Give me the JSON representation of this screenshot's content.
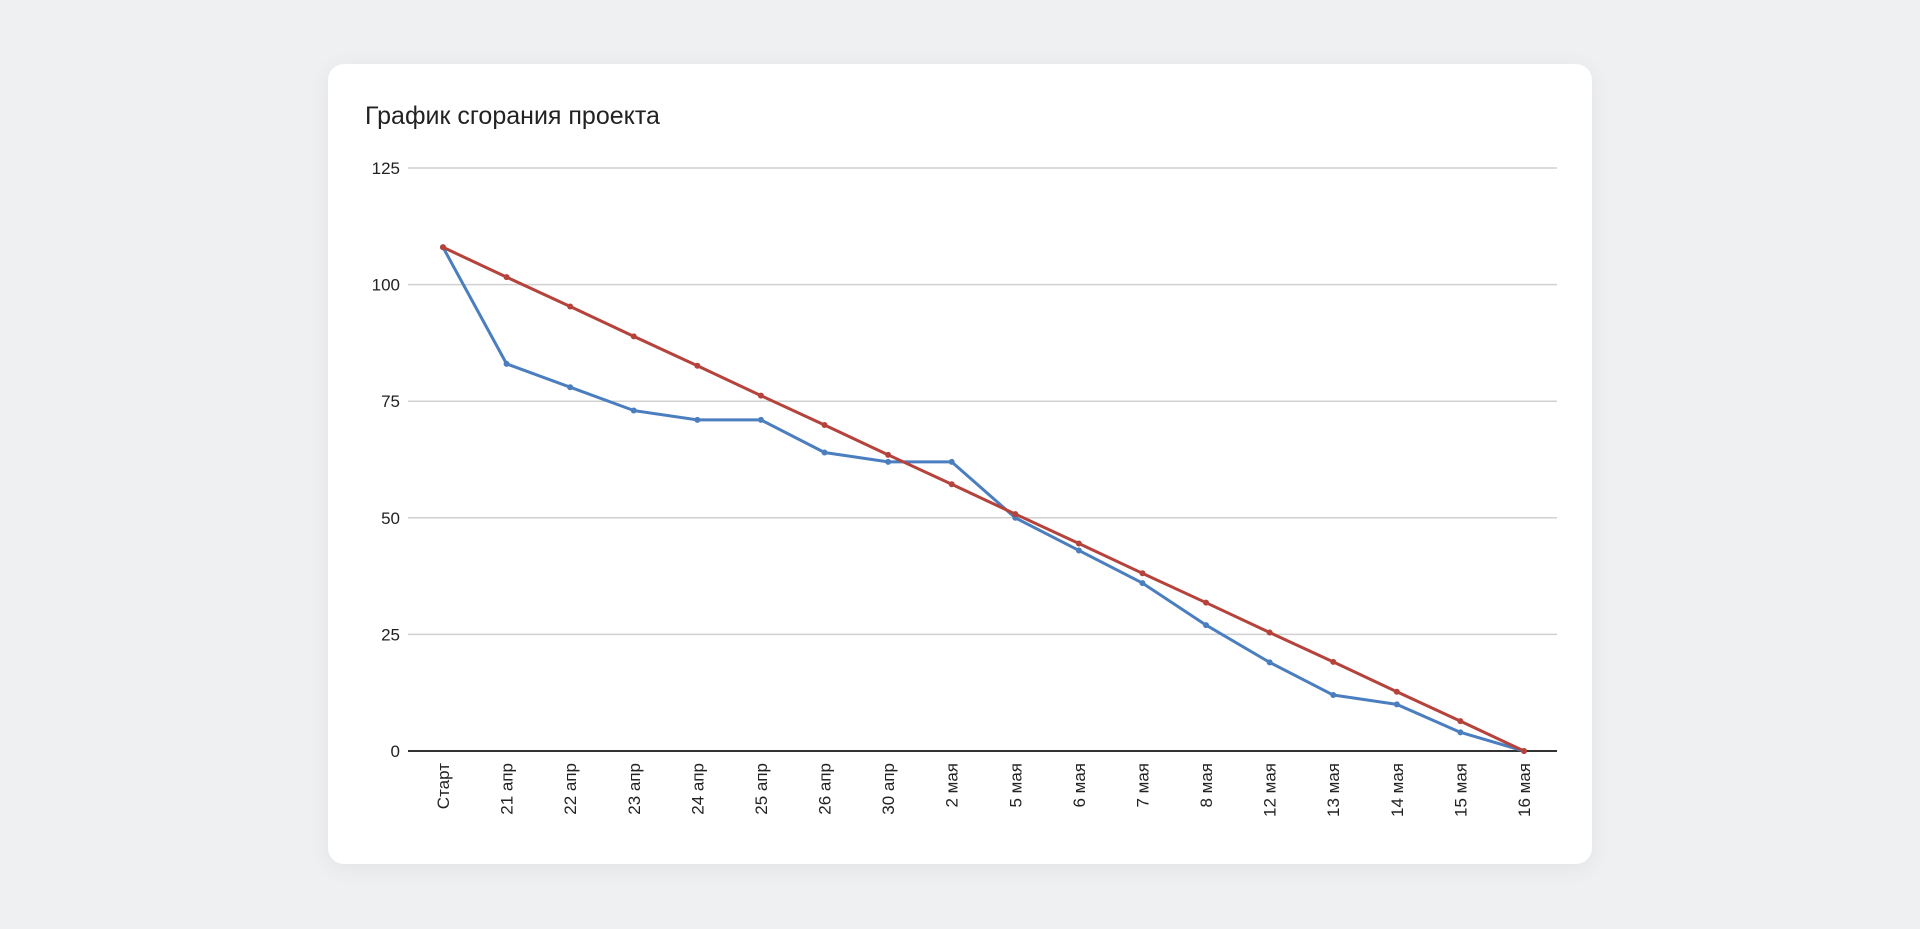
{
  "chart_data": {
    "type": "line",
    "title": "График сгорания проекта",
    "categories": [
      "Старт",
      "21 апр",
      "22 апр",
      "23 апр",
      "24 апр",
      "25 апр",
      "26 апр",
      "30 апр",
      "2 мая",
      "5 мая",
      "6 мая",
      "7 мая",
      "8 мая",
      "12 мая",
      "13 мая",
      "14 мая",
      "15 мая",
      "16 мая"
    ],
    "series": [
      {
        "color": "#4a7ebf",
        "values": [
          108,
          83,
          78,
          73,
          71,
          71,
          64,
          62,
          62,
          50,
          43,
          36,
          27,
          19,
          12,
          10,
          4,
          0
        ]
      },
      {
        "color": "#b5423b",
        "values": [
          108,
          101.6,
          95.3,
          88.9,
          82.6,
          76.2,
          69.9,
          63.5,
          57.2,
          50.8,
          44.5,
          38.1,
          31.8,
          25.4,
          19.1,
          12.7,
          6.4,
          0
        ]
      }
    ],
    "ylim": [
      0,
      125
    ],
    "yticks": [
      0,
      25,
      50,
      75,
      100,
      125
    ],
    "grid": true,
    "legend": "none"
  }
}
